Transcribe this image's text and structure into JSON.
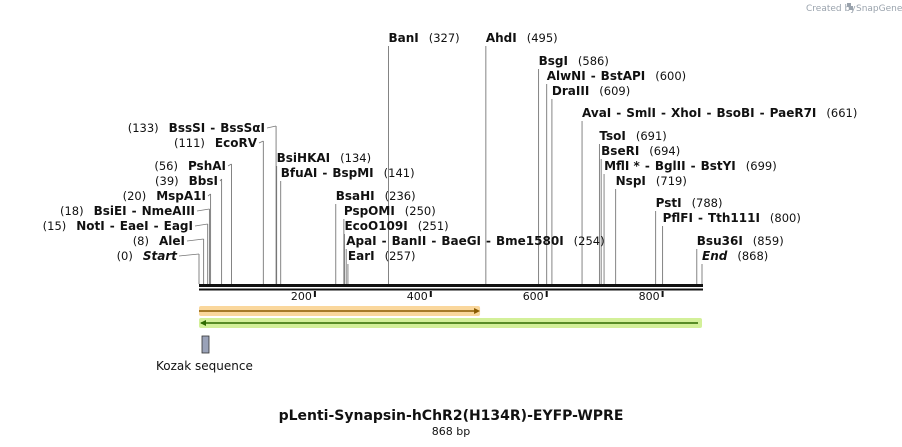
{
  "credit": {
    "text": "Created by",
    "brand": "SnapGene",
    "icon": "snapgene-logo-icon"
  },
  "map": {
    "length": 868,
    "ticks": [
      200,
      400,
      600,
      800
    ]
  },
  "sites": [
    {
      "pos": 327,
      "names": [
        "BanI"
      ],
      "posText": "(327)",
      "side": "right"
    },
    {
      "pos": 495,
      "names": [
        "AhdI"
      ],
      "posText": "(495)",
      "side": "right"
    },
    {
      "pos": 586,
      "names": [
        "BsgI"
      ],
      "posText": "(586)",
      "side": "right"
    },
    {
      "pos": 600,
      "names": [
        "AlwNI",
        "BstAPI"
      ],
      "posText": "(600)",
      "side": "right"
    },
    {
      "pos": 609,
      "names": [
        "DraIII"
      ],
      "posText": "(609)",
      "side": "right"
    },
    {
      "pos": 661,
      "names": [
        "AvaI",
        "SmlI",
        "XhoI",
        "BsoBI",
        "PaeR7I"
      ],
      "posText": "(661)",
      "side": "right"
    },
    {
      "pos": 691,
      "names": [
        "TsoI"
      ],
      "posText": "(691)",
      "side": "right"
    },
    {
      "pos": 694,
      "names": [
        "BseRI"
      ],
      "posText": "(694)",
      "side": "right"
    },
    {
      "pos": 699,
      "names": [
        "MflI *",
        "BglII",
        "BstYI"
      ],
      "posText": "(699)",
      "side": "right"
    },
    {
      "pos": 719,
      "names": [
        "NspI"
      ],
      "posText": "(719)",
      "side": "right"
    },
    {
      "pos": 788,
      "names": [
        "PstI"
      ],
      "posText": "(788)",
      "side": "right"
    },
    {
      "pos": 800,
      "names": [
        "PflFI",
        "Tth111I"
      ],
      "posText": "(800)",
      "side": "right"
    },
    {
      "pos": 859,
      "names": [
        "Bsu36I"
      ],
      "posText": "(859)",
      "side": "right"
    },
    {
      "pos": 868,
      "names": [
        "End"
      ],
      "posText": "(868)",
      "side": "right",
      "italic": true
    },
    {
      "pos": 134,
      "names": [
        "BsiHKAI"
      ],
      "posText": "(134)",
      "side": "right"
    },
    {
      "pos": 141,
      "names": [
        "BfuAI",
        "BspMI"
      ],
      "posText": "(141)",
      "side": "right"
    },
    {
      "pos": 236,
      "names": [
        "BsaHI"
      ],
      "posText": "(236)",
      "side": "right"
    },
    {
      "pos": 250,
      "names": [
        "PspOMI"
      ],
      "posText": "(250)",
      "side": "right"
    },
    {
      "pos": 251,
      "names": [
        "EcoO109I"
      ],
      "posText": "(251)",
      "side": "right"
    },
    {
      "pos": 254,
      "names": [
        "ApaI",
        "BanII",
        "BaeGI",
        "Bme1580I"
      ],
      "posText": "(254)",
      "side": "right"
    },
    {
      "pos": 257,
      "names": [
        "EarI"
      ],
      "posText": "(257)",
      "side": "right"
    },
    {
      "pos": 133,
      "names": [
        "BssSI",
        "BssSαI"
      ],
      "posText": "(133)",
      "side": "left"
    },
    {
      "pos": 111,
      "names": [
        "EcoRV"
      ],
      "posText": "(111)",
      "side": "left"
    },
    {
      "pos": 56,
      "names": [
        "PshAI"
      ],
      "posText": "(56)",
      "side": "left"
    },
    {
      "pos": 39,
      "names": [
        "BbsI"
      ],
      "posText": "(39)",
      "side": "left"
    },
    {
      "pos": 20,
      "names": [
        "MspA1I"
      ],
      "posText": "(20)",
      "side": "left"
    },
    {
      "pos": 18,
      "names": [
        "BsiEI",
        "NmeAIII"
      ],
      "posText": "(18)",
      "side": "left"
    },
    {
      "pos": 15,
      "names": [
        "NotI",
        "EaeI",
        "EagI"
      ],
      "posText": "(15)",
      "side": "left"
    },
    {
      "pos": 8,
      "names": [
        "AleI"
      ],
      "posText": "(8)",
      "side": "left"
    },
    {
      "pos": 0,
      "names": [
        "Start"
      ],
      "posText": "(0)",
      "side": "left",
      "italic": true
    }
  ],
  "features": [
    {
      "name": "orf-forward",
      "start": 0,
      "end": 485,
      "direction": "forward",
      "fill": "#f5b74a",
      "stroke": "#8a5a00"
    },
    {
      "name": "orf-reverse",
      "start": 0,
      "end": 868,
      "direction": "reverse",
      "fill": "#b5e655",
      "stroke": "#2f6b00"
    },
    {
      "name": "kozak",
      "start": 2,
      "end": 14,
      "label": "Kozak sequence",
      "fill": "#9aa2b8",
      "stroke": "#333333"
    }
  ],
  "kozak_label": "Kozak sequence",
  "title": "pLenti-Synapsin-hChR2(H134R)-EYFP-WPRE",
  "subtitle": "868 bp"
}
